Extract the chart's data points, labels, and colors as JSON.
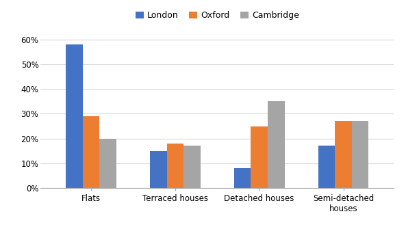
{
  "categories": [
    "Flats",
    "Terraced houses",
    "Detached houses",
    "Semi-detached\nhouses"
  ],
  "series": {
    "London": [
      0.58,
      0.15,
      0.08,
      0.17
    ],
    "Oxford": [
      0.29,
      0.18,
      0.25,
      0.27
    ],
    "Cambridge": [
      0.2,
      0.17,
      0.35,
      0.27
    ]
  },
  "colors": {
    "London": "#4472C4",
    "Oxford": "#ED7D31",
    "Cambridge": "#A5A5A5"
  },
  "legend_labels": [
    "London",
    "Oxford",
    "Cambridge"
  ],
  "ylim": [
    0,
    0.65
  ],
  "yticks": [
    0.0,
    0.1,
    0.2,
    0.3,
    0.4,
    0.5,
    0.6
  ],
  "ytick_labels": [
    "0%",
    "10%",
    "20%",
    "30%",
    "40%",
    "50%",
    "60%"
  ],
  "bar_width": 0.2,
  "background_color": "#FFFFFF",
  "grid_color": "#D9D9D9"
}
